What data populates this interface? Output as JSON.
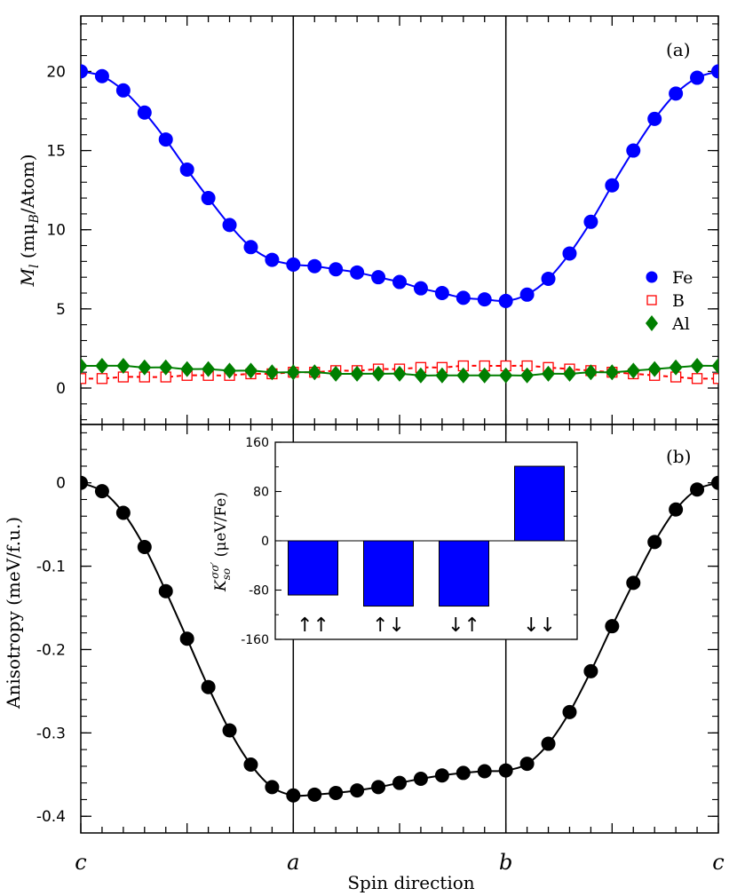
{
  "figure": {
    "xlabel": "Spin direction",
    "direction_labels": [
      "c",
      "a",
      "b",
      "c"
    ]
  },
  "chart_data": [
    {
      "type": "line",
      "panel_label": "(a)",
      "ylabel_main": "M",
      "ylabel_sub": "l",
      "ylabel_unit_prefix": " (mμ",
      "ylabel_unit_sub": "B",
      "ylabel_unit_suffix": "/Atom)",
      "ylim": [
        -2.3,
        23.5
      ],
      "yticks": [
        0,
        5,
        10,
        15,
        20
      ],
      "xlim": [
        0,
        30
      ],
      "x_tick_labels": [
        "c",
        "a",
        "b",
        "c"
      ],
      "grid": false,
      "legend_position": "right",
      "series": [
        {
          "name": "Fe",
          "marker": "filled-circle",
          "color": "#0000ff",
          "linestyle": "solid",
          "values": [
            20.0,
            19.7,
            18.8,
            17.4,
            15.7,
            13.8,
            12.0,
            10.3,
            8.9,
            8.1,
            7.8,
            7.7,
            7.5,
            7.3,
            7.0,
            6.7,
            6.3,
            6.0,
            5.7,
            5.6,
            5.5,
            5.9,
            6.9,
            8.5,
            10.5,
            12.8,
            15.0,
            17.0,
            18.6,
            19.6,
            20.0
          ]
        },
        {
          "name": "B",
          "marker": "open-square",
          "color": "#ff0000",
          "linestyle": "dashed",
          "values": [
            0.6,
            0.6,
            0.7,
            0.7,
            0.7,
            0.8,
            0.8,
            0.8,
            0.9,
            0.9,
            1.0,
            1.0,
            1.1,
            1.1,
            1.2,
            1.2,
            1.3,
            1.3,
            1.4,
            1.4,
            1.4,
            1.4,
            1.3,
            1.2,
            1.1,
            1.0,
            0.9,
            0.8,
            0.7,
            0.6,
            0.6
          ]
        },
        {
          "name": "Al",
          "marker": "filled-diamond",
          "color": "#007f00",
          "linestyle": "solid",
          "values": [
            1.4,
            1.4,
            1.4,
            1.3,
            1.3,
            1.2,
            1.2,
            1.1,
            1.1,
            1.0,
            1.0,
            1.0,
            0.9,
            0.9,
            0.9,
            0.9,
            0.8,
            0.8,
            0.8,
            0.8,
            0.8,
            0.8,
            0.9,
            0.9,
            1.0,
            1.0,
            1.1,
            1.2,
            1.3,
            1.4,
            1.4
          ]
        }
      ]
    },
    {
      "type": "line",
      "panel_label": "(b)",
      "ylabel": "Anisotropy (meV/f.u.)",
      "ylim": [
        -0.42,
        0.07
      ],
      "yticks": [
        0,
        -0.1,
        -0.2,
        -0.3,
        -0.4
      ],
      "ytick_labels": [
        "0",
        "-0.1",
        "-0.2",
        "-0.3",
        "-0.4"
      ],
      "xlim": [
        0,
        30
      ],
      "x_tick_labels": [
        "c",
        "a",
        "b",
        "c"
      ],
      "grid": false,
      "series": [
        {
          "marker": "filled-circle",
          "color": "#000000",
          "linestyle": "solid",
          "values": [
            0,
            -0.01,
            -0.036,
            -0.077,
            -0.13,
            -0.187,
            -0.245,
            -0.297,
            -0.338,
            -0.365,
            -0.375,
            -0.374,
            -0.372,
            -0.369,
            -0.365,
            -0.36,
            -0.355,
            -0.351,
            -0.348,
            -0.346,
            -0.345,
            -0.337,
            -0.313,
            -0.275,
            -0.226,
            -0.172,
            -0.12,
            -0.071,
            -0.032,
            -0.008,
            0.0
          ]
        }
      ]
    },
    {
      "type": "bar",
      "role": "inset",
      "ylabel_main": "K",
      "ylabel_sub": "so",
      "ylabel_sup": "σσ′",
      "ylabel_unit": " (μeV/Fe)",
      "ylim": [
        -160,
        160
      ],
      "yticks": [
        160,
        80,
        0,
        -80,
        -160
      ],
      "ytick_labels": [
        "160",
        "80",
        "0",
        "-80",
        "-160"
      ],
      "categories": [
        "↑↑",
        "↑↓",
        "↓↑",
        "↓↓"
      ],
      "values": [
        -88,
        -106,
        -106,
        121
      ],
      "bar_color": "#0000ff"
    }
  ]
}
